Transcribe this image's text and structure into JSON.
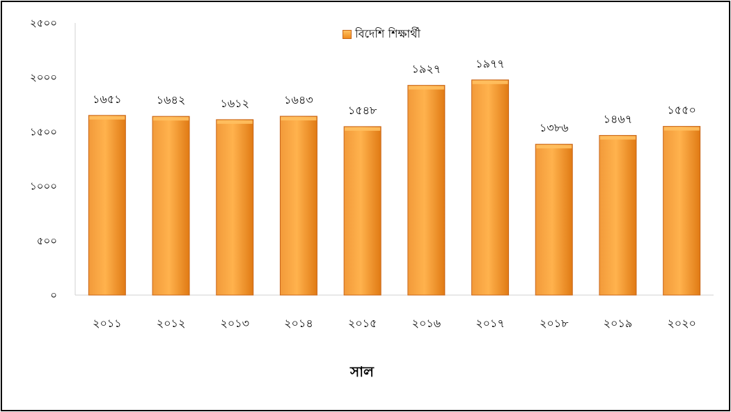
{
  "chart_data": {
    "type": "bar",
    "categories": [
      "২০১১",
      "২০১২",
      "২০১৩",
      "২০১৪",
      "২০১৫",
      "২০১৬",
      "২০১৭",
      "২০১৮",
      "২০১৯",
      "২০২০"
    ],
    "series": [
      {
        "name": "বিদেশি শিক্ষার্থী",
        "values": [
          1651,
          1642,
          1612,
          1643,
          1548,
          1927,
          1977,
          1386,
          1467,
          1550
        ],
        "value_labels": [
          "১৬৫১",
          "১৬৪২",
          "১৬১২",
          "১৬৪৩",
          "১৫৪৮",
          "১৯২৭",
          "১৯৭৭",
          "১৩৮৬",
          "১৪৬৭",
          "১৫৫০"
        ]
      }
    ],
    "yticks": [
      0,
      500,
      1000,
      1500,
      2000,
      2500
    ],
    "ytick_labels": [
      "০",
      "৫০০",
      "১০০০",
      "১৫০০",
      "২০০০",
      "২৫০০"
    ],
    "ylim": [
      0,
      2500
    ],
    "xlabel": "সাল",
    "ylabel": "",
    "title": "",
    "legend_position": "top-center",
    "grid": false,
    "bar_color_top": "#ffc060",
    "bar_color_bottom": "#e8801a",
    "bar_border": "#c8661a"
  }
}
